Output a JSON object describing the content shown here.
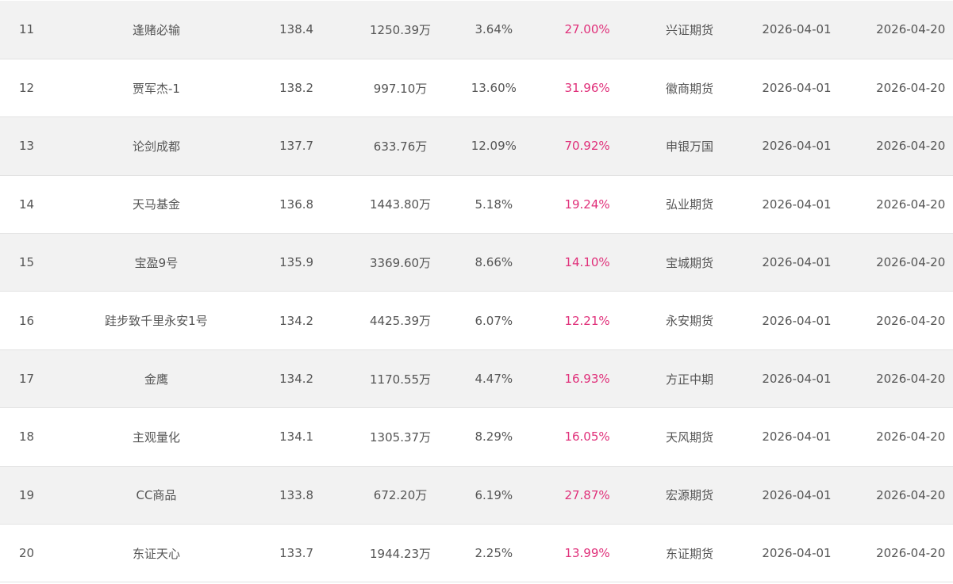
{
  "colors": {
    "rate": "#e0307a",
    "text": "#555555",
    "stripe": "#f2f2f2"
  },
  "rows": [
    {
      "rank": "11",
      "name": "逢赌必输",
      "score": "138.4",
      "amount": "1250.39万",
      "pct": "3.64%",
      "rate": "27.00%",
      "company": "兴证期货",
      "start": "2026-04-01",
      "end": "2026-04-20"
    },
    {
      "rank": "12",
      "name": "贾军杰-1",
      "score": "138.2",
      "amount": "997.10万",
      "pct": "13.60%",
      "rate": "31.96%",
      "company": "徽商期货",
      "start": "2026-04-01",
      "end": "2026-04-20"
    },
    {
      "rank": "13",
      "name": "论剑成都",
      "score": "137.7",
      "amount": "633.76万",
      "pct": "12.09%",
      "rate": "70.92%",
      "company": "申银万国",
      "start": "2026-04-01",
      "end": "2026-04-20"
    },
    {
      "rank": "14",
      "name": "天马基金",
      "score": "136.8",
      "amount": "1443.80万",
      "pct": "5.18%",
      "rate": "19.24%",
      "company": "弘业期货",
      "start": "2026-04-01",
      "end": "2026-04-20"
    },
    {
      "rank": "15",
      "name": "宝盈9号",
      "score": "135.9",
      "amount": "3369.60万",
      "pct": "8.66%",
      "rate": "14.10%",
      "company": "宝城期货",
      "start": "2026-04-01",
      "end": "2026-04-20"
    },
    {
      "rank": "16",
      "name": "跬步致千里永安1号",
      "score": "134.2",
      "amount": "4425.39万",
      "pct": "6.07%",
      "rate": "12.21%",
      "company": "永安期货",
      "start": "2026-04-01",
      "end": "2026-04-20"
    },
    {
      "rank": "17",
      "name": "金鹰",
      "score": "134.2",
      "amount": "1170.55万",
      "pct": "4.47%",
      "rate": "16.93%",
      "company": "方正中期",
      "start": "2026-04-01",
      "end": "2026-04-20"
    },
    {
      "rank": "18",
      "name": "主观量化",
      "score": "134.1",
      "amount": "1305.37万",
      "pct": "8.29%",
      "rate": "16.05%",
      "company": "天风期货",
      "start": "2026-04-01",
      "end": "2026-04-20"
    },
    {
      "rank": "19",
      "name": "CC商品",
      "score": "133.8",
      "amount": "672.20万",
      "pct": "6.19%",
      "rate": "27.87%",
      "company": "宏源期货",
      "start": "2026-04-01",
      "end": "2026-04-20"
    },
    {
      "rank": "20",
      "name": "东证天心",
      "score": "133.7",
      "amount": "1944.23万",
      "pct": "2.25%",
      "rate": "13.99%",
      "company": "东证期货",
      "start": "2026-04-01",
      "end": "2026-04-20"
    }
  ]
}
